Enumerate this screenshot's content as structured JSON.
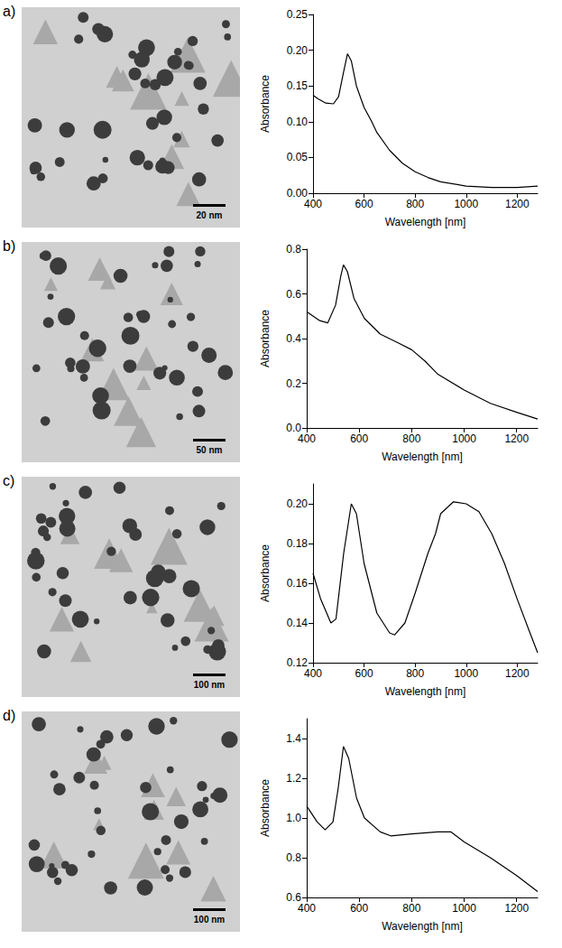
{
  "images": [
    {
      "label": "a)",
      "scale_bar": "20 nm"
    },
    {
      "label": "b)",
      "scale_bar": "50 nm"
    },
    {
      "label": "c)",
      "scale_bar": "100 nm"
    },
    {
      "label": "d)",
      "scale_bar": "100 nm"
    }
  ],
  "chart_data": [
    {
      "type": "line",
      "x_label": "Wavelength [nm]",
      "y_label": "Absorbance",
      "color": "#000000",
      "grid": false,
      "x": [
        400,
        420,
        450,
        480,
        500,
        520,
        535,
        550,
        570,
        600,
        630,
        650,
        700,
        750,
        800,
        850,
        900,
        1000,
        1100,
        1200,
        1280
      ],
      "values": [
        0.137,
        0.132,
        0.126,
        0.125,
        0.135,
        0.17,
        0.195,
        0.185,
        0.15,
        0.12,
        0.1,
        0.085,
        0.06,
        0.042,
        0.03,
        0.022,
        0.016,
        0.01,
        0.008,
        0.008,
        0.01
      ],
      "xlim": [
        400,
        1280
      ],
      "xticks": [
        400,
        600,
        800,
        1000,
        1200
      ],
      "ylim": [
        0,
        0.25
      ],
      "yticks": [
        {
          "value": 0,
          "label": "0.00"
        },
        {
          "value": 0.05,
          "label": "0.05"
        },
        {
          "value": 0.1,
          "label": "0.10"
        },
        {
          "value": 0.15,
          "label": "0.15"
        },
        {
          "value": 0.2,
          "label": "0.20"
        },
        {
          "value": 0.25,
          "label": "0.25"
        }
      ]
    },
    {
      "type": "line",
      "x_label": "Wavelength [nm]",
      "y_label": "Absorbance",
      "color": "#000000",
      "grid": false,
      "x": [
        400,
        450,
        480,
        510,
        530,
        540,
        555,
        580,
        620,
        680,
        750,
        800,
        850,
        900,
        1000,
        1100,
        1200,
        1280
      ],
      "values": [
        0.52,
        0.48,
        0.47,
        0.55,
        0.68,
        0.73,
        0.7,
        0.58,
        0.49,
        0.42,
        0.38,
        0.35,
        0.3,
        0.24,
        0.17,
        0.11,
        0.07,
        0.04
      ],
      "xlim": [
        400,
        1280
      ],
      "xticks": [
        400,
        600,
        800,
        1000,
        1200
      ],
      "ylim": [
        0,
        0.8
      ],
      "yticks": [
        {
          "value": 0,
          "label": "0.0"
        },
        0.2,
        0.4,
        0.6,
        0.8
      ]
    },
    {
      "type": "line",
      "x_label": "Wavelength [nm]",
      "y_label": "Absorbance",
      "color": "#000000",
      "grid": false,
      "x": [
        400,
        430,
        470,
        490,
        520,
        550,
        570,
        600,
        650,
        700,
        720,
        760,
        800,
        850,
        880,
        900,
        950,
        1000,
        1050,
        1100,
        1150,
        1200,
        1250,
        1280
      ],
      "values": [
        0.165,
        0.152,
        0.14,
        0.142,
        0.175,
        0.2,
        0.195,
        0.17,
        0.145,
        0.135,
        0.134,
        0.14,
        0.155,
        0.175,
        0.185,
        0.195,
        0.201,
        0.2,
        0.196,
        0.185,
        0.17,
        0.152,
        0.135,
        0.125
      ],
      "xlim": [
        400,
        1280
      ],
      "xticks": [
        400,
        600,
        800,
        1000,
        1200
      ],
      "ylim": [
        0.12,
        0.21
      ],
      "yticks": [
        0.12,
        0.14,
        0.16,
        0.18,
        {
          "value": 0.2,
          "label": "0.20"
        }
      ]
    },
    {
      "type": "line",
      "x_label": "Wavelength [nm]",
      "y_label": "Absorbance",
      "color": "#000000",
      "grid": false,
      "x": [
        400,
        440,
        470,
        500,
        520,
        540,
        560,
        590,
        620,
        680,
        720,
        800,
        900,
        950,
        1000,
        1100,
        1200,
        1280
      ],
      "values": [
        1.06,
        0.98,
        0.94,
        0.98,
        1.15,
        1.36,
        1.3,
        1.1,
        1.0,
        0.93,
        0.91,
        0.92,
        0.93,
        0.93,
        0.88,
        0.8,
        0.71,
        0.63
      ],
      "xlim": [
        400,
        1280
      ],
      "xticks": [
        400,
        600,
        800,
        1000,
        1200
      ],
      "ylim": [
        0.6,
        1.5
      ],
      "yticks": [
        0.6,
        0.8,
        {
          "value": 1.0,
          "label": "1.0"
        },
        1.2,
        1.4
      ]
    }
  ]
}
